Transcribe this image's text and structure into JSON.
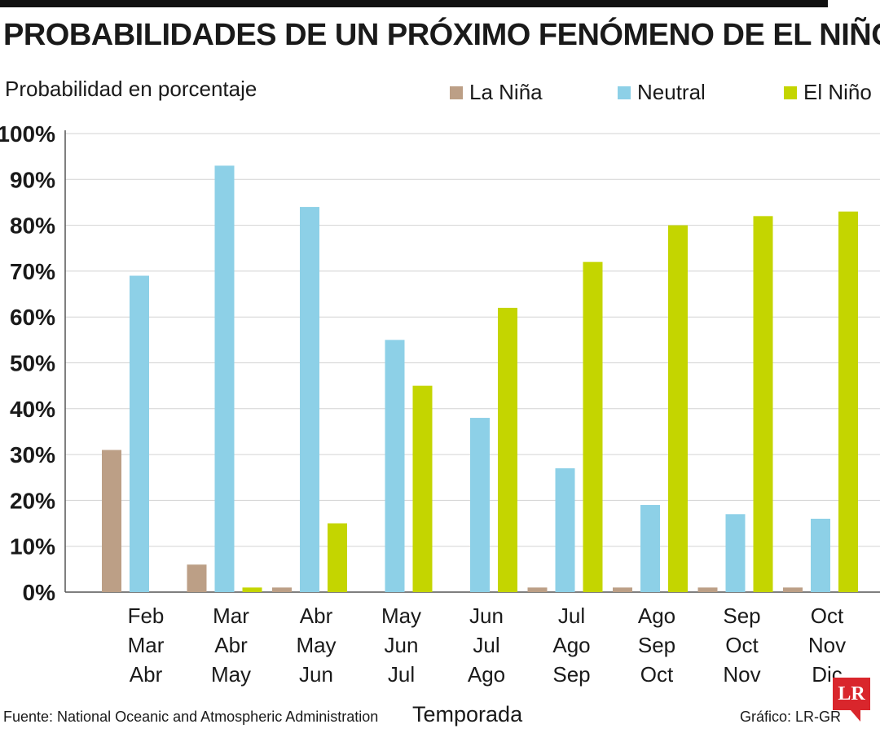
{
  "title": "PROBABILIDADES DE UN PRÓXIMO FENÓMENO DE EL NIÑO",
  "source": "Fuente: National Oceanic and Atmospheric Administration",
  "credit": "Gráfico: LR-GR",
  "logo_text": "LR",
  "chart_data": {
    "type": "bar",
    "ylabel": "Probabilidad en porcentaje",
    "xlabel": "Temporada",
    "ylim": [
      0,
      100
    ],
    "yticks": [
      "0%",
      "10%",
      "20%",
      "30%",
      "40%",
      "50%",
      "60%",
      "70%",
      "80%",
      "90%",
      "100%"
    ],
    "grid": true,
    "legend_position": "top-right",
    "categories": [
      [
        "Feb",
        "Mar",
        "Abr"
      ],
      [
        "Mar",
        "Abr",
        "May"
      ],
      [
        "Abr",
        "May",
        "Jun"
      ],
      [
        "May",
        "Jun",
        "Jul"
      ],
      [
        "Jun",
        "Jul",
        "Ago"
      ],
      [
        "Jul",
        "Ago",
        "Sep"
      ],
      [
        "Ago",
        "Sep",
        "Oct"
      ],
      [
        "Sep",
        "Oct",
        "Nov"
      ],
      [
        "Oct",
        "Nov",
        "Dic"
      ]
    ],
    "series": [
      {
        "name": "La Niña",
        "color": "#bc9f86",
        "values": [
          31,
          6,
          1,
          0,
          0,
          1,
          1,
          1,
          1
        ]
      },
      {
        "name": "Neutral",
        "color": "#8dd0e7",
        "values": [
          69,
          93,
          84,
          55,
          38,
          27,
          19,
          17,
          16
        ]
      },
      {
        "name": "El Niño",
        "color": "#c4d500",
        "values": [
          0,
          1,
          15,
          45,
          62,
          72,
          80,
          82,
          83
        ]
      }
    ]
  }
}
